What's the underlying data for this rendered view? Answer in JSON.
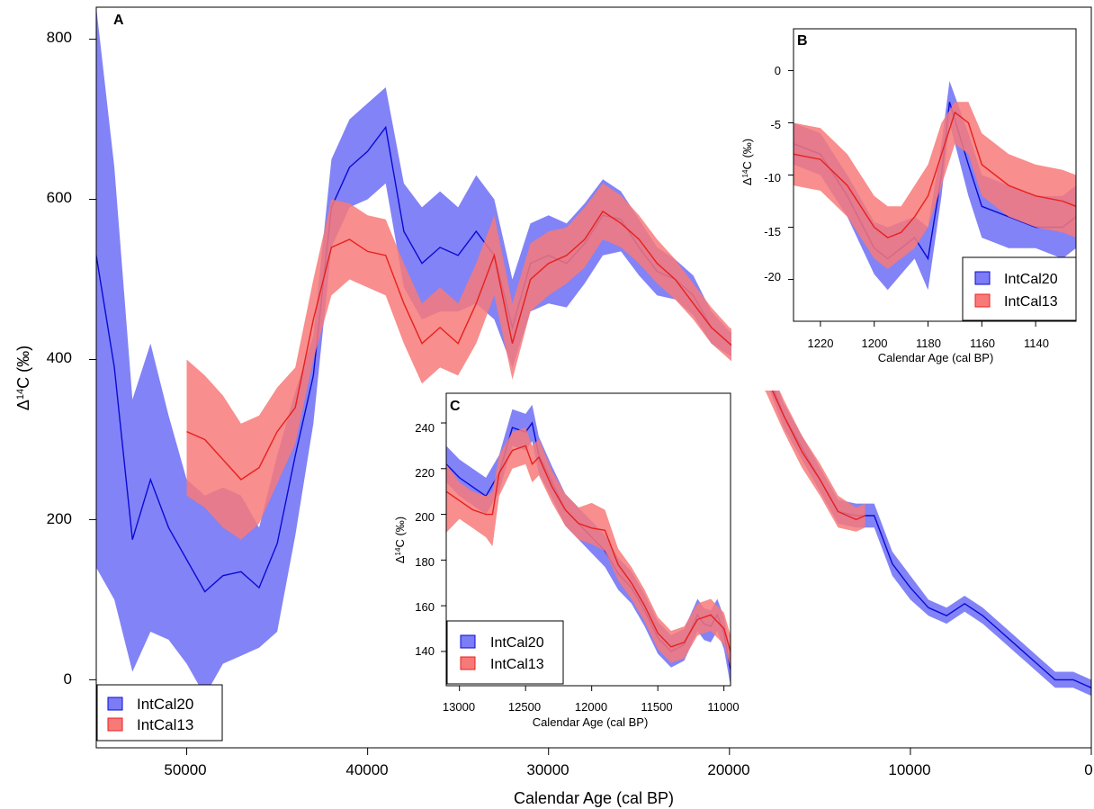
{
  "colors": {
    "intcal20_fill": "#7b7cf6",
    "intcal20_line": "#0a0ad6",
    "intcal13_fill": "#f77a79",
    "intcal13_line": "#e8201e"
  },
  "chart_data": [
    {
      "panel": "A",
      "type": "area",
      "xlabel": "Calendar Age (cal BP)",
      "ylabel": "Δ14C (‰)",
      "xlim": [
        55000,
        0
      ],
      "ylim": [
        -85,
        840
      ],
      "xticks": [
        50000,
        40000,
        30000,
        20000,
        10000,
        0
      ],
      "yticks": [
        0,
        200,
        400,
        600,
        800
      ],
      "legend_position": "bottom-left",
      "series": [
        {
          "name": "IntCal20",
          "x": [
            55000,
            54000,
            53000,
            52000,
            51000,
            50000,
            49000,
            48000,
            47000,
            46000,
            45000,
            44000,
            43000,
            42000,
            41000,
            40000,
            39000,
            38000,
            37000,
            36000,
            35000,
            34000,
            33000,
            32000,
            31000,
            30000,
            29000,
            28000,
            27000,
            26000,
            25000,
            24000,
            23000,
            22000,
            21000,
            20000,
            19000,
            18000,
            17000,
            16000,
            15000,
            14000,
            13000,
            12000,
            11000,
            10000,
            9000,
            8000,
            7000,
            6000,
            5000,
            4000,
            3000,
            2000,
            1000,
            0
          ],
          "mean": [
            530,
            390,
            175,
            250,
            190,
            150,
            110,
            130,
            135,
            115,
            170,
            280,
            380,
            590,
            640,
            660,
            690,
            560,
            520,
            540,
            530,
            560,
            530,
            440,
            520,
            530,
            520,
            545,
            580,
            575,
            540,
            510,
            500,
            480,
            440,
            420,
            405,
            390,
            330,
            290,
            250,
            210,
            205,
            205,
            145,
            115,
            90,
            80,
            95,
            80,
            60,
            40,
            20,
            0,
            0,
            -10
          ],
          "lower": [
            140,
            100,
            10,
            60,
            50,
            20,
            -20,
            20,
            30,
            40,
            60,
            180,
            320,
            540,
            590,
            600,
            620,
            490,
            450,
            460,
            460,
            470,
            450,
            390,
            460,
            470,
            465,
            495,
            530,
            535,
            505,
            480,
            475,
            455,
            420,
            405,
            390,
            375,
            315,
            275,
            235,
            195,
            190,
            190,
            130,
            100,
            80,
            70,
            85,
            70,
            50,
            30,
            10,
            -10,
            -10,
            -20
          ],
          "upper": [
            840,
            640,
            350,
            420,
            330,
            250,
            230,
            240,
            230,
            190,
            280,
            360,
            430,
            650,
            700,
            720,
            740,
            620,
            590,
            610,
            590,
            630,
            600,
            500,
            570,
            580,
            570,
            595,
            625,
            610,
            575,
            540,
            525,
            505,
            460,
            435,
            420,
            405,
            345,
            305,
            265,
            225,
            220,
            220,
            160,
            130,
            100,
            90,
            105,
            90,
            70,
            50,
            30,
            10,
            10,
            0
          ]
        },
        {
          "name": "IntCal13",
          "x": [
            50000,
            49000,
            48000,
            47000,
            46000,
            45000,
            44000,
            43000,
            42000,
            41000,
            40000,
            39000,
            38000,
            37000,
            36000,
            35000,
            34000,
            33000,
            32000,
            31000,
            30000,
            29000,
            28000,
            27000,
            26000,
            25000,
            24000,
            23000,
            22000,
            21000,
            20000,
            19000,
            18000,
            17000,
            16000,
            15000,
            14000,
            13000,
            12500
          ],
          "mean": [
            310,
            300,
            275,
            250,
            265,
            310,
            340,
            450,
            540,
            550,
            535,
            530,
            470,
            420,
            440,
            420,
            470,
            530,
            420,
            500,
            520,
            530,
            550,
            585,
            570,
            550,
            520,
            500,
            470,
            440,
            420,
            400,
            380,
            330,
            285,
            250,
            210,
            200,
            205
          ],
          "lower": [
            230,
            215,
            190,
            175,
            195,
            245,
            295,
            400,
            480,
            500,
            490,
            480,
            420,
            370,
            390,
            380,
            420,
            480,
            375,
            460,
            480,
            495,
            515,
            550,
            540,
            520,
            495,
            475,
            450,
            420,
            400,
            380,
            360,
            310,
            265,
            230,
            190,
            185,
            190
          ],
          "upper": [
            400,
            380,
            355,
            320,
            330,
            365,
            390,
            500,
            600,
            595,
            580,
            575,
            520,
            470,
            490,
            470,
            520,
            580,
            470,
            545,
            560,
            565,
            590,
            620,
            605,
            580,
            550,
            525,
            495,
            465,
            440,
            425,
            400,
            350,
            305,
            270,
            230,
            215,
            220
          ]
        }
      ]
    },
    {
      "panel": "B",
      "type": "area",
      "xlabel": "Calendar Age (cal BP)",
      "ylabel": "Δ14C (‰)",
      "xlim": [
        1230,
        1125
      ],
      "ylim": [
        -24,
        4
      ],
      "xticks": [
        1220,
        1200,
        1180,
        1160,
        1140
      ],
      "yticks": [
        0,
        -5,
        -10,
        -15,
        -20
      ],
      "legend_position": "bottom-right",
      "series": [
        {
          "name": "IntCal20",
          "x": [
            1230,
            1220,
            1210,
            1200,
            1195,
            1190,
            1185,
            1180,
            1175,
            1172,
            1165,
            1160,
            1150,
            1140,
            1130,
            1125
          ],
          "mean": [
            -7,
            -8,
            -12,
            -17,
            -18,
            -17,
            -16,
            -18,
            -10,
            -3,
            -9,
            -13,
            -14,
            -15,
            -15,
            -14
          ],
          "lower": [
            -9,
            -10,
            -14,
            -19.5,
            -21,
            -19.5,
            -18,
            -21,
            -12,
            -5,
            -12,
            -16,
            -17,
            -17,
            -18,
            -17
          ],
          "upper": [
            -5,
            -6,
            -10,
            -14.5,
            -15,
            -14.5,
            -14,
            -15,
            -7,
            -1,
            -6,
            -10,
            -11,
            -12,
            -12,
            -11
          ]
        },
        {
          "name": "IntCal13",
          "x": [
            1230,
            1220,
            1210,
            1200,
            1195,
            1190,
            1185,
            1180,
            1175,
            1170,
            1165,
            1160,
            1150,
            1140,
            1130,
            1125
          ],
          "mean": [
            -8,
            -8.5,
            -11,
            -15,
            -16,
            -15.5,
            -14,
            -12,
            -8,
            -4,
            -5,
            -9,
            -11,
            -12,
            -12.5,
            -13
          ],
          "lower": [
            -11,
            -11.5,
            -14,
            -18,
            -19,
            -18,
            -17,
            -15,
            -11,
            -7,
            -8,
            -12,
            -14,
            -15,
            -15.5,
            -16
          ],
          "upper": [
            -5,
            -5.5,
            -8,
            -12,
            -13,
            -13,
            -11,
            -9,
            -5,
            -3,
            -3,
            -6,
            -8,
            -9,
            -9.5,
            -10
          ]
        }
      ]
    },
    {
      "panel": "C",
      "type": "area",
      "xlabel": "Calendar Age (cal BP)",
      "ylabel": "Δ14C (‰)",
      "xlim": [
        13100,
        10950
      ],
      "ylim": [
        125,
        253
      ],
      "xticks": [
        13000,
        12500,
        12000,
        11500,
        11000
      ],
      "yticks": [
        140,
        160,
        180,
        200,
        220,
        240
      ],
      "legend_position": "bottom-left",
      "series": [
        {
          "name": "IntCal20",
          "x": [
            13100,
            13000,
            12900,
            12800,
            12700,
            12600,
            12500,
            12450,
            12400,
            12300,
            12200,
            12100,
            12000,
            11900,
            11800,
            11700,
            11600,
            11500,
            11400,
            11300,
            11200,
            11150,
            11100,
            11050,
            11000,
            10950
          ],
          "mean": [
            222,
            216,
            212,
            208,
            218,
            238,
            236,
            240,
            226,
            214,
            202,
            196,
            190,
            184,
            174,
            168,
            158,
            146,
            140,
            143,
            156,
            152,
            151,
            156,
            148,
            132
          ],
          "lower": [
            214,
            208,
            204,
            200,
            210,
            230,
            228,
            232,
            218,
            207,
            195,
            189,
            183,
            177,
            167,
            161,
            151,
            139,
            133,
            136,
            149,
            145,
            144,
            149,
            141,
            125
          ],
          "upper": [
            230,
            224,
            220,
            216,
            226,
            246,
            244,
            248,
            234,
            221,
            209,
            203,
            197,
            191,
            181,
            175,
            165,
            153,
            147,
            150,
            163,
            159,
            158,
            163,
            155,
            139
          ]
        },
        {
          "name": "IntCal13",
          "x": [
            13100,
            13000,
            12900,
            12800,
            12750,
            12700,
            12600,
            12500,
            12450,
            12400,
            12300,
            12200,
            12100,
            12000,
            11900,
            11800,
            11700,
            11600,
            11500,
            11400,
            11300,
            11200,
            11100,
            11000,
            10950
          ],
          "mean": [
            210,
            206,
            202,
            200,
            200,
            218,
            228,
            230,
            222,
            225,
            212,
            202,
            196,
            194,
            193,
            178,
            170,
            160,
            148,
            142,
            144,
            154,
            156,
            150,
            140
          ],
          "lower": [
            192,
            198,
            194,
            190,
            186,
            208,
            220,
            222,
            214,
            217,
            205,
            195,
            189,
            187,
            184,
            171,
            163,
            153,
            141,
            135,
            137,
            147,
            149,
            143,
            133
          ],
          "upper": [
            222,
            214,
            210,
            208,
            210,
            226,
            236,
            238,
            230,
            233,
            219,
            209,
            203,
            205,
            202,
            185,
            177,
            167,
            155,
            149,
            151,
            161,
            163,
            157,
            147
          ]
        }
      ]
    }
  ],
  "panels": {
    "A": {
      "label": "A",
      "xlabel": "Calendar Age (cal BP)",
      "ylabel_main": "Δ",
      "ylabel_sup": "14",
      "ylabel_rest": "C (‰)",
      "x_tick_labels": [
        "50000",
        "40000",
        "30000",
        "20000",
        "10000",
        "0"
      ],
      "y_tick_labels": [
        "0",
        "200",
        "400",
        "600",
        "800"
      ],
      "legend": [
        "IntCal20",
        "IntCal13"
      ]
    },
    "B": {
      "label": "B",
      "xlabel": "Calendar Age (cal BP)",
      "ylabel_main": "Δ",
      "ylabel_sup": "14",
      "ylabel_rest": "C (‰)",
      "x_tick_labels": [
        "1220",
        "1200",
        "1180",
        "1160",
        "1140"
      ],
      "y_tick_labels": [
        "0",
        "-5",
        "-10",
        "-15",
        "-20"
      ],
      "legend": [
        "IntCal20",
        "IntCal13"
      ]
    },
    "C": {
      "label": "C",
      "xlabel": "Calendar Age (cal BP)",
      "ylabel_main": "Δ",
      "ylabel_sup": "14",
      "ylabel_rest": "C (‰)",
      "x_tick_labels": [
        "13000",
        "12500",
        "12000",
        "11500",
        "11000"
      ],
      "y_tick_labels": [
        "140",
        "160",
        "180",
        "200",
        "220",
        "240"
      ],
      "legend": [
        "IntCal20",
        "IntCal13"
      ]
    }
  }
}
